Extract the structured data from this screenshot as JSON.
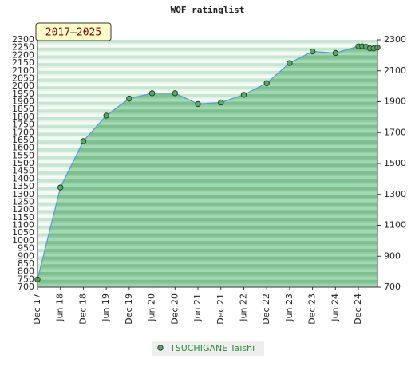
{
  "chart_data": {
    "type": "area",
    "title": "WOF ratinglist",
    "annotation": "2017–2025",
    "series": [
      {
        "name": "TSUCHIGANE Taishi",
        "color": "#5aa86a",
        "x": [
          0,
          6,
          12,
          18,
          24,
          30,
          36,
          42,
          48,
          54,
          60,
          66,
          72,
          78,
          84,
          85,
          86,
          87,
          88,
          89
        ],
        "values": [
          750,
          1345,
          1645,
          1810,
          1920,
          1955,
          1955,
          1885,
          1895,
          1945,
          2020,
          2150,
          2225,
          2215,
          2258,
          2258,
          2255,
          2245,
          2245,
          2250
        ]
      }
    ],
    "xlim": [
      0,
      89
    ],
    "xticks": [
      {
        "value": 0,
        "label": "Dec 17"
      },
      {
        "value": 6,
        "label": "Jun 18"
      },
      {
        "value": 12,
        "label": "Dec 18"
      },
      {
        "value": 18,
        "label": "Jun 19"
      },
      {
        "value": 24,
        "label": "Dec 19"
      },
      {
        "value": 30,
        "label": "Jun 20"
      },
      {
        "value": 36,
        "label": "Dec 20"
      },
      {
        "value": 42,
        "label": "Jun 21"
      },
      {
        "value": 48,
        "label": "Dec 21"
      },
      {
        "value": 54,
        "label": "Jun 22"
      },
      {
        "value": 60,
        "label": "Dec 22"
      },
      {
        "value": 66,
        "label": "Jun 23"
      },
      {
        "value": 72,
        "label": "Dec 23"
      },
      {
        "value": 78,
        "label": "Jun 24"
      },
      {
        "value": 84,
        "label": "Dec 24"
      }
    ],
    "ylim": [
      700,
      2300
    ],
    "yticks": [
      700,
      750,
      800,
      850,
      900,
      950,
      1000,
      1050,
      1100,
      1150,
      1200,
      1250,
      1300,
      1350,
      1400,
      1450,
      1500,
      1550,
      1600,
      1650,
      1700,
      1750,
      1800,
      1850,
      1900,
      1950,
      2000,
      2050,
      2100,
      2150,
      2200,
      2250,
      2300
    ],
    "y2lim": [
      700,
      2300
    ],
    "y2ticks": [
      700,
      900,
      1100,
      1300,
      1500,
      1700,
      1900,
      2100,
      2300
    ]
  }
}
